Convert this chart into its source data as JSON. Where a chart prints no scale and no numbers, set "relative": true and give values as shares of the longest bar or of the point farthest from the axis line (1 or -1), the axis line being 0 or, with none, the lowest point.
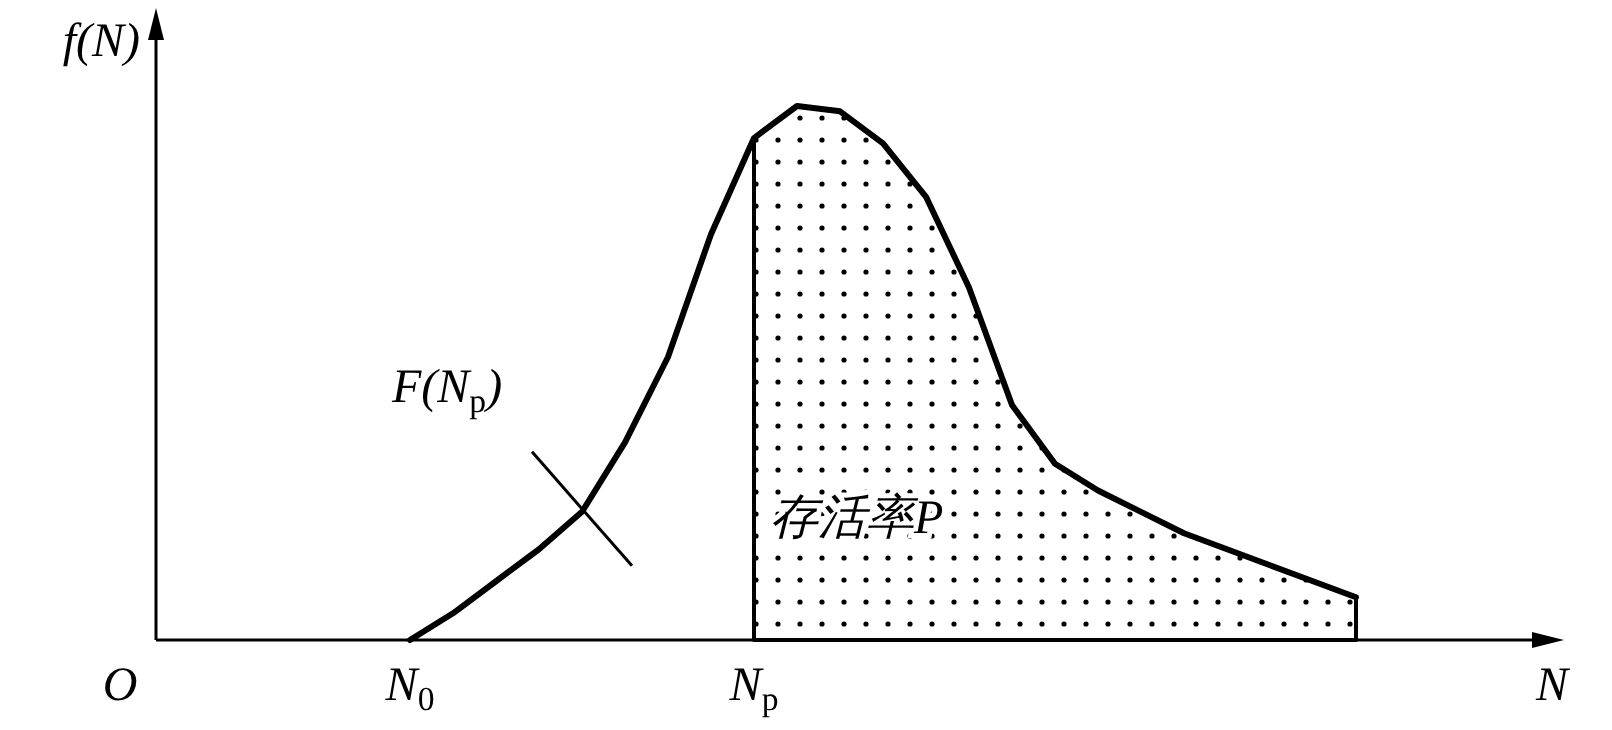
{
  "chart_data": {
    "type": "line",
    "relative": true,
    "xlabel": "N",
    "categories": [
      "N$_{0}$",
      null,
      null,
      null,
      null,
      null,
      null,
      null,
      "N$_{p}$",
      null,
      null,
      null,
      null,
      null,
      null,
      null,
      null,
      null,
      null,
      null,
      null,
      null,
      null
    ],
    "series": [
      {
        "color": "#000000",
        "values": [
          0,
          0.05,
          0.11,
          0.17,
          0.24,
          0.37,
          0.53,
          0.76,
          0.94,
          1,
          0.99,
          0.93,
          0.83,
          0.66,
          0.44,
          0.33,
          0.28,
          0.24,
          0.2,
          0.17,
          0.14,
          0.11,
          0.08
        ]
      },
      {
        "type": "area",
        "name": "存活率P",
        "color": "#000000",
        "values": [
          null,
          null,
          null,
          null,
          null,
          null,
          null,
          null,
          0.94,
          1,
          0.99,
          0.93,
          0.83,
          0.66,
          0.44,
          0.33,
          0.28,
          0.24,
          0.2,
          0.17,
          0.14,
          0.11,
          0.08
        ]
      }
    ],
    "annotations": [
      "F(N$_{p}$)",
      "O",
      "f(N)"
    ]
  }
}
